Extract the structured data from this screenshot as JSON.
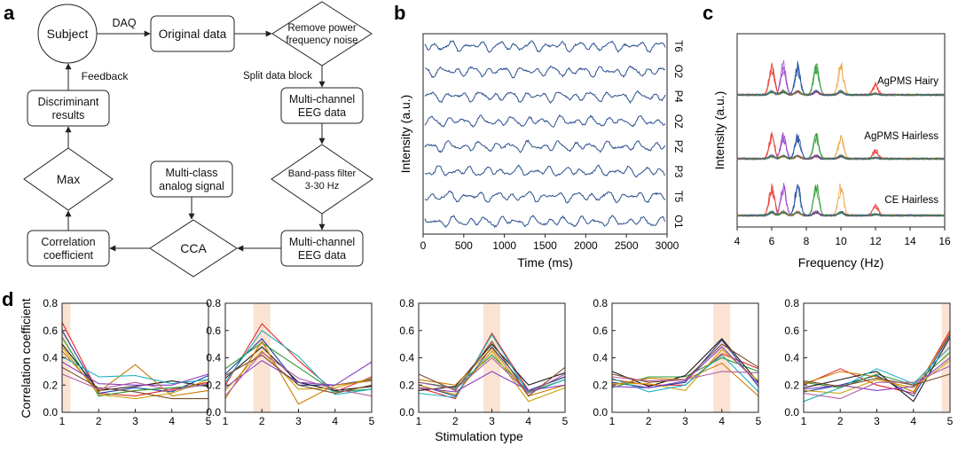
{
  "panels": {
    "a": "a",
    "b": "b",
    "c": "c",
    "d": "d"
  },
  "colors": {
    "series": [
      "#e6262b",
      "#1f3f9e",
      "#2a9a32",
      "#1a1a1a",
      "#c9a000",
      "#cc7a00",
      "#1ab0c0",
      "#8a3fbf",
      "#7a4a2a",
      "#b35aa0"
    ],
    "eeg": "#2b4f8e",
    "highlight": "#fbe3d4",
    "spec_groups": [
      "#e63a2e",
      "#9b3fc8",
      "#1f4fa0",
      "#2a9a32",
      "#e89a30"
    ]
  },
  "flowchart": {
    "subject": "Subject",
    "daq": "DAQ",
    "original_data": "Original data",
    "remove_noise_1": "Remove power",
    "remove_noise_2": "frequency noise",
    "split": "Split data block",
    "multichannel_1": "Multi-channel",
    "multichannel_2": "EEG data",
    "bandpass_1": "Band-pass filter",
    "bandpass_2": "3-30 Hz",
    "multichannel2_1": "Multi-channel",
    "multichannel2_2": "EEG data",
    "cca": "CCA",
    "analog_1": "Multi-class",
    "analog_2": "analog signal",
    "corr_1": "Correlation",
    "corr_2": "coefficient",
    "max": "Max",
    "disc_1": "Discriminant",
    "disc_2": "results",
    "feedback": "Feedback"
  },
  "chart_data": [
    {
      "panel": "b",
      "type": "line",
      "xlabel": "Time (ms)",
      "ylabel": "Intensity (a.u.)",
      "xlim": [
        0,
        3000
      ],
      "xticks": [
        0,
        500,
        1000,
        1500,
        2000,
        2500,
        3000
      ],
      "channels": [
        "T6",
        "O2",
        "P4",
        "OZ",
        "PZ",
        "P3",
        "T5",
        "O1"
      ]
    },
    {
      "panel": "c",
      "type": "line",
      "xlabel": "Frequency (Hz)",
      "ylabel": "Intensity (a.u.)",
      "xlim": [
        4,
        16
      ],
      "xticks": [
        4,
        6,
        8,
        10,
        12,
        14,
        16
      ],
      "groups": [
        "AgPMS Hairy",
        "AgPMS Hairless",
        "CE Hairless"
      ],
      "peak_frequencies": [
        6,
        6.67,
        7.5,
        8.57,
        10,
        12
      ]
    },
    {
      "panel": "d",
      "type": "line",
      "xlabel": "Stimulation type",
      "ylabel": "Correlation coefficient",
      "ylim": [
        0,
        0.8
      ],
      "yticks": [
        "0.0",
        "0.2",
        "0.4",
        "0.6",
        "0.8"
      ],
      "xticks": [
        1,
        2,
        3,
        4,
        5
      ],
      "subplots": [
        {
          "highlight": 1,
          "series": [
            [
              0.66,
              0.14,
              0.12,
              0.17,
              0.22
            ],
            [
              0.6,
              0.14,
              0.18,
              0.15,
              0.27
            ],
            [
              0.55,
              0.12,
              0.16,
              0.18,
              0.2
            ],
            [
              0.5,
              0.16,
              0.19,
              0.23,
              0.19
            ],
            [
              0.48,
              0.13,
              0.1,
              0.14,
              0.24
            ],
            [
              0.45,
              0.15,
              0.35,
              0.12,
              0.16
            ],
            [
              0.41,
              0.26,
              0.27,
              0.21,
              0.24
            ],
            [
              0.37,
              0.21,
              0.2,
              0.2,
              0.28
            ],
            [
              0.33,
              0.18,
              0.15,
              0.1,
              0.1
            ],
            [
              0.28,
              0.17,
              0.22,
              0.16,
              0.21
            ]
          ]
        },
        {
          "highlight": 2,
          "series": [
            [
              0.2,
              0.65,
              0.38,
              0.15,
              0.26
            ],
            [
              0.28,
              0.54,
              0.2,
              0.2,
              0.24
            ],
            [
              0.32,
              0.51,
              0.33,
              0.15,
              0.17
            ],
            [
              0.25,
              0.48,
              0.22,
              0.16,
              0.19
            ],
            [
              0.16,
              0.45,
              0.17,
              0.18,
              0.25
            ],
            [
              0.1,
              0.52,
              0.06,
              0.2,
              0.23
            ],
            [
              0.22,
              0.6,
              0.41,
              0.13,
              0.17
            ],
            [
              0.18,
              0.38,
              0.22,
              0.2,
              0.37
            ],
            [
              0.27,
              0.42,
              0.2,
              0.14,
              0.2
            ],
            [
              0.12,
              0.44,
              0.25,
              0.17,
              0.12
            ]
          ]
        },
        {
          "highlight": 3,
          "series": [
            [
              0.18,
              0.1,
              0.58,
              0.16,
              0.26
            ],
            [
              0.2,
              0.12,
              0.48,
              0.16,
              0.26
            ],
            [
              0.22,
              0.18,
              0.42,
              0.15,
              0.24
            ],
            [
              0.16,
              0.19,
              0.5,
              0.2,
              0.29
            ],
            [
              0.2,
              0.13,
              0.45,
              0.08,
              0.18
            ],
            [
              0.24,
              0.2,
              0.47,
              0.12,
              0.2
            ],
            [
              0.14,
              0.11,
              0.57,
              0.14,
              0.24
            ],
            [
              0.18,
              0.15,
              0.3,
              0.16,
              0.2
            ],
            [
              0.28,
              0.16,
              0.52,
              0.12,
              0.33
            ],
            [
              0.22,
              0.17,
              0.4,
              0.14,
              0.28
            ]
          ]
        },
        {
          "highlight": 4,
          "series": [
            [
              0.24,
              0.2,
              0.2,
              0.43,
              0.32
            ],
            [
              0.22,
              0.18,
              0.22,
              0.53,
              0.19
            ],
            [
              0.18,
              0.26,
              0.26,
              0.4,
              0.3
            ],
            [
              0.3,
              0.19,
              0.27,
              0.54,
              0.22
            ],
            [
              0.21,
              0.21,
              0.16,
              0.46,
              0.23
            ],
            [
              0.2,
              0.25,
              0.24,
              0.36,
              0.12
            ],
            [
              0.25,
              0.15,
              0.2,
              0.42,
              0.15
            ],
            [
              0.19,
              0.18,
              0.23,
              0.48,
              0.21
            ],
            [
              0.28,
              0.22,
              0.24,
              0.5,
              0.33
            ],
            [
              0.26,
              0.23,
              0.24,
              0.3,
              0.29
            ]
          ]
        },
        {
          "highlight": 5,
          "series": [
            [
              0.2,
              0.32,
              0.2,
              0.14,
              0.6
            ],
            [
              0.15,
              0.2,
              0.27,
              0.12,
              0.57
            ],
            [
              0.22,
              0.18,
              0.28,
              0.2,
              0.44
            ],
            [
              0.18,
              0.24,
              0.3,
              0.08,
              0.55
            ],
            [
              0.16,
              0.14,
              0.24,
              0.18,
              0.38
            ],
            [
              0.21,
              0.3,
              0.26,
              0.15,
              0.58
            ],
            [
              0.08,
              0.18,
              0.32,
              0.21,
              0.48
            ],
            [
              0.17,
              0.2,
              0.16,
              0.19,
              0.4
            ],
            [
              0.23,
              0.19,
              0.25,
              0.2,
              0.28
            ],
            [
              0.14,
              0.1,
              0.22,
              0.22,
              0.34
            ]
          ]
        }
      ]
    }
  ]
}
